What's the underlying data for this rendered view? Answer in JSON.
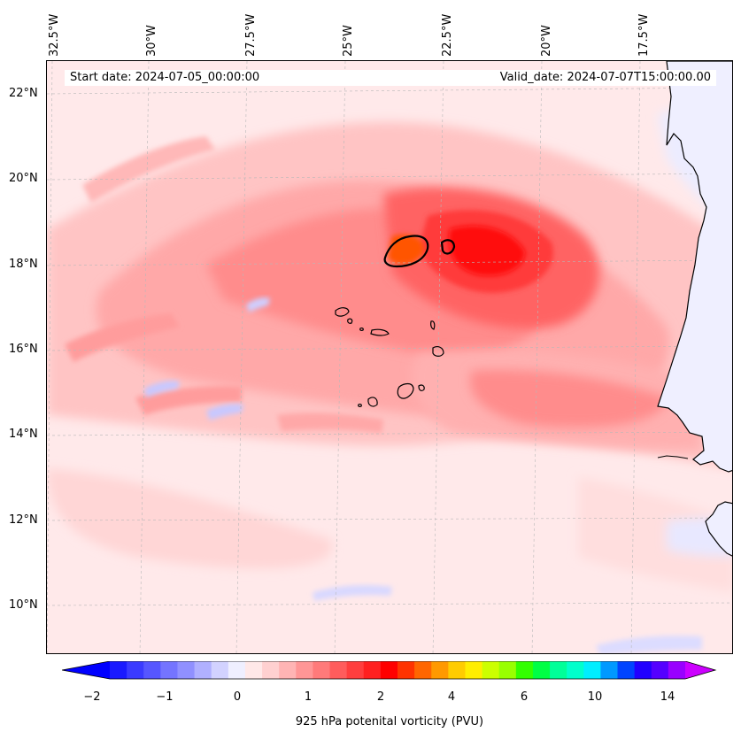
{
  "header": {
    "start_date": "Start date: 2024-07-05_00:00:00",
    "valid_date": "Valid_date: 2024-07-07T15:00:00.00"
  },
  "axes": {
    "lon_labels": [
      "32.5°W",
      "30°W",
      "27.5°W",
      "25°W",
      "22.5°W",
      "20°W",
      "17.5°W"
    ],
    "lat_labels": [
      "22°N",
      "20°N",
      "18°N",
      "16°N",
      "14°N",
      "12°N",
      "10°N"
    ]
  },
  "colorbar": {
    "label": "925 hPa potenital vorticity (PVU)",
    "ticks": [
      "−2",
      "−1",
      "0",
      "1",
      "2",
      "4",
      "6",
      "10",
      "14"
    ],
    "colors": [
      "#1a1aff",
      "#3a3aff",
      "#5656ff",
      "#7474ff",
      "#9090ff",
      "#b0b0ff",
      "#d2d2ff",
      "#efefff",
      "#ffe8e8",
      "#ffd0d0",
      "#ffb4b4",
      "#ff9696",
      "#ff7a7a",
      "#ff5c5c",
      "#ff3e3e",
      "#ff2020",
      "#ff0000",
      "#ff3300",
      "#ff6600",
      "#ff9900",
      "#ffcc00",
      "#ffee00",
      "#ccff00",
      "#99ff00",
      "#33ff00",
      "#00ff44",
      "#00ff99",
      "#00ffcc",
      "#00eeff",
      "#0099ff",
      "#0044ff",
      "#2200ff",
      "#5500ff",
      "#9900ff"
    ],
    "under_color": "#0000ff",
    "over_color": "#cc00ff"
  },
  "map": {
    "background_color": "#ffe9ea",
    "coastline_color": "#000000"
  }
}
